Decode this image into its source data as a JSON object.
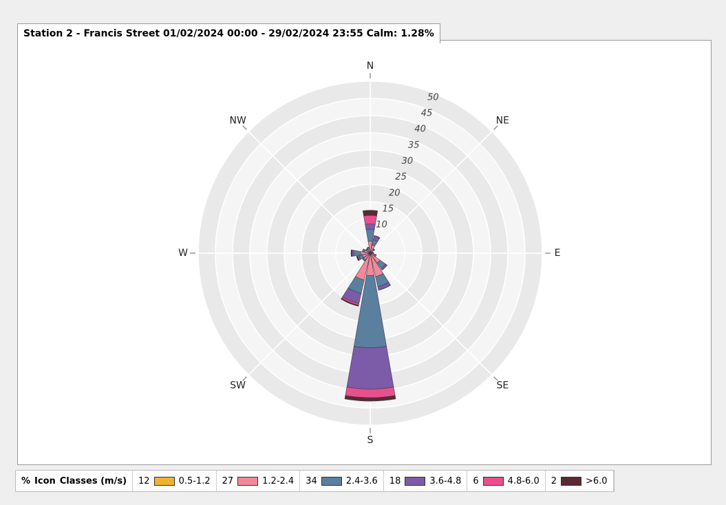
{
  "chart_data": {
    "type": "windrose",
    "title": "Station 2 - Francis Street 01/02/2024 00:00 - 29/02/2024 23:55 Calm: 1.28%",
    "categories": [
      "N",
      null,
      "NE",
      null,
      "E",
      null,
      "SE",
      null,
      "S",
      null,
      "SW",
      null,
      "W",
      null,
      "NW",
      null
    ],
    "rlim": [
      0,
      50
    ],
    "rticks": [
      10,
      15,
      20,
      25,
      30,
      35,
      40,
      45,
      50
    ],
    "legend_header": [
      "%",
      "Icon",
      "Classes (m/s)"
    ],
    "series": [
      {
        "name": "0.5-1.2",
        "percent": 12,
        "color": "#efb232",
        "values": [
          0.5,
          0.5,
          0.3,
          0.3,
          0.3,
          0.3,
          0.5,
          0.5,
          0.5,
          0.5,
          0.3,
          0.3,
          0.3,
          0.3,
          0.3,
          0.3
        ]
      },
      {
        "name": "1.2-2.4",
        "percent": 27,
        "color": "#f2899a",
        "values": [
          3,
          2,
          1,
          0.5,
          0.5,
          1,
          3,
          6.5,
          6,
          7.5,
          2,
          2,
          2.5,
          1.5,
          1,
          1
        ]
      },
      {
        "name": "2.4-3.6",
        "percent": 34,
        "color": "#5b7f9e",
        "values": [
          3.5,
          1.5,
          0.3,
          0,
          0.2,
          0.5,
          2,
          3,
          21,
          4,
          0.5,
          1,
          2,
          0.5,
          0.3,
          0.5
        ]
      },
      {
        "name": "3.6-4.8",
        "percent": 18,
        "color": "#7c5ca8",
        "values": [
          1.5,
          1,
          0,
          0,
          0,
          0,
          0.5,
          1,
          12,
          3,
          0,
          0.5,
          0.5,
          0,
          0,
          0
        ]
      },
      {
        "name": "4.8-6.0",
        "percent": 6,
        "color": "#e8508c",
        "values": [
          2.5,
          0.3,
          0,
          0,
          0,
          0,
          0,
          0,
          2.5,
          0.5,
          0,
          0,
          0,
          0,
          0,
          0
        ]
      },
      {
        "name": ">6.0",
        "percent": 2,
        "color": "#5a2a32",
        "values": [
          1.5,
          0,
          0,
          0,
          0,
          0,
          0,
          0,
          1,
          0.3,
          0,
          0.3,
          0.3,
          0,
          0,
          0
        ]
      }
    ]
  }
}
